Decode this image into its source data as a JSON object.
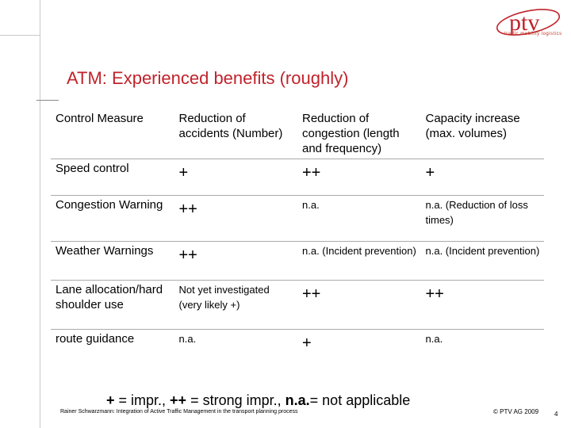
{
  "logo": {
    "text": "ptv",
    "tagline": "traffic mobility logistics",
    "color": "#c0232b"
  },
  "title": "ATM: Experienced benefits (roughly)",
  "table": {
    "headers": [
      "Control Measure",
      "Reduction of accidents (Number)",
      "Reduction of congestion (length and frequency)",
      "Capacity increase (max. volumes)"
    ],
    "rows": [
      [
        "Speed control",
        "+",
        "++",
        "+"
      ],
      [
        "Congestion Warning",
        "++",
        "n.a.",
        "n.a. (Reduction of loss times)"
      ],
      [
        "Weather Warnings",
        "++",
        "n.a. (Incident prevention)",
        "n.a. (Incident prevention)"
      ],
      [
        "Lane allocation/hard shoulder use",
        "Not yet investigated (very likely +)",
        "++",
        "++"
      ],
      [
        "route guidance",
        "n.a.",
        "+",
        "n.a."
      ]
    ]
  },
  "legend": {
    "p1": "+",
    "t1": " = impr., ",
    "p2": "++",
    "t2": " = strong impr., ",
    "p3": "n.a.",
    "t3": "=  not applicable"
  },
  "footer": {
    "left": "Rainer Schwarzmann: Integration of Active Traffic Management in the transport planning process",
    "right": "© PTV AG 2009",
    "page": "4"
  }
}
